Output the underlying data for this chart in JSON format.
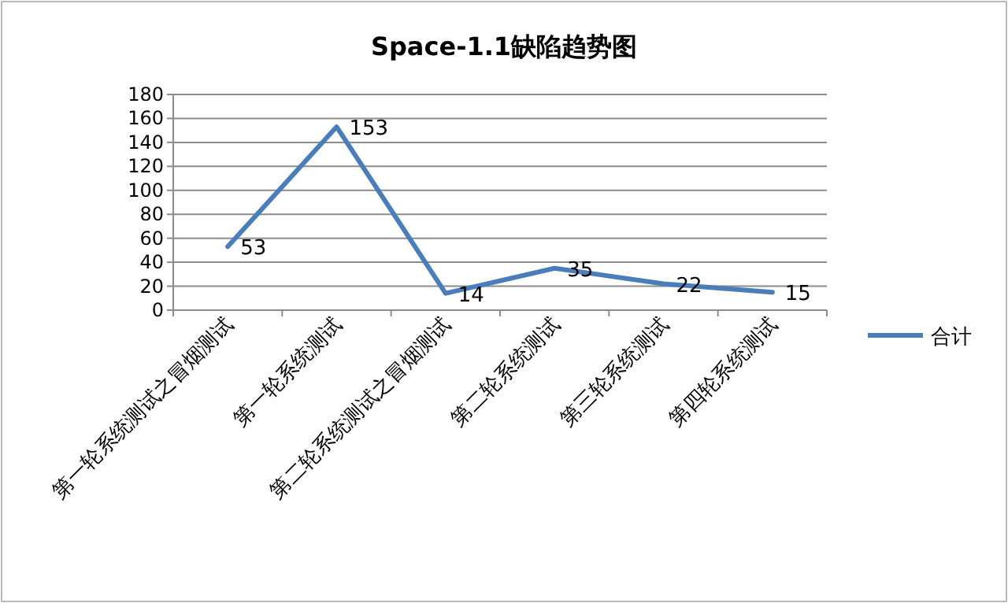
{
  "chart_data": {
    "type": "line",
    "title": "Space-1.1缺陷趋势图",
    "categories": [
      "第一轮系统测试之冒烟测试",
      "第一轮系统测试",
      "第二轮系统测试之冒烟测试",
      "第二轮系统测试",
      "第三轮系统测试",
      "第四轮系统测试"
    ],
    "series": [
      {
        "name": "合计",
        "color": "#4a7ebb",
        "values": [
          53,
          153,
          14,
          35,
          22,
          15
        ]
      }
    ],
    "ylim": [
      0,
      180
    ],
    "yticks": [
      0,
      20,
      40,
      60,
      80,
      100,
      120,
      140,
      160,
      180
    ],
    "grid": "y",
    "legend": "right",
    "data_labels": true,
    "marker": "none"
  }
}
